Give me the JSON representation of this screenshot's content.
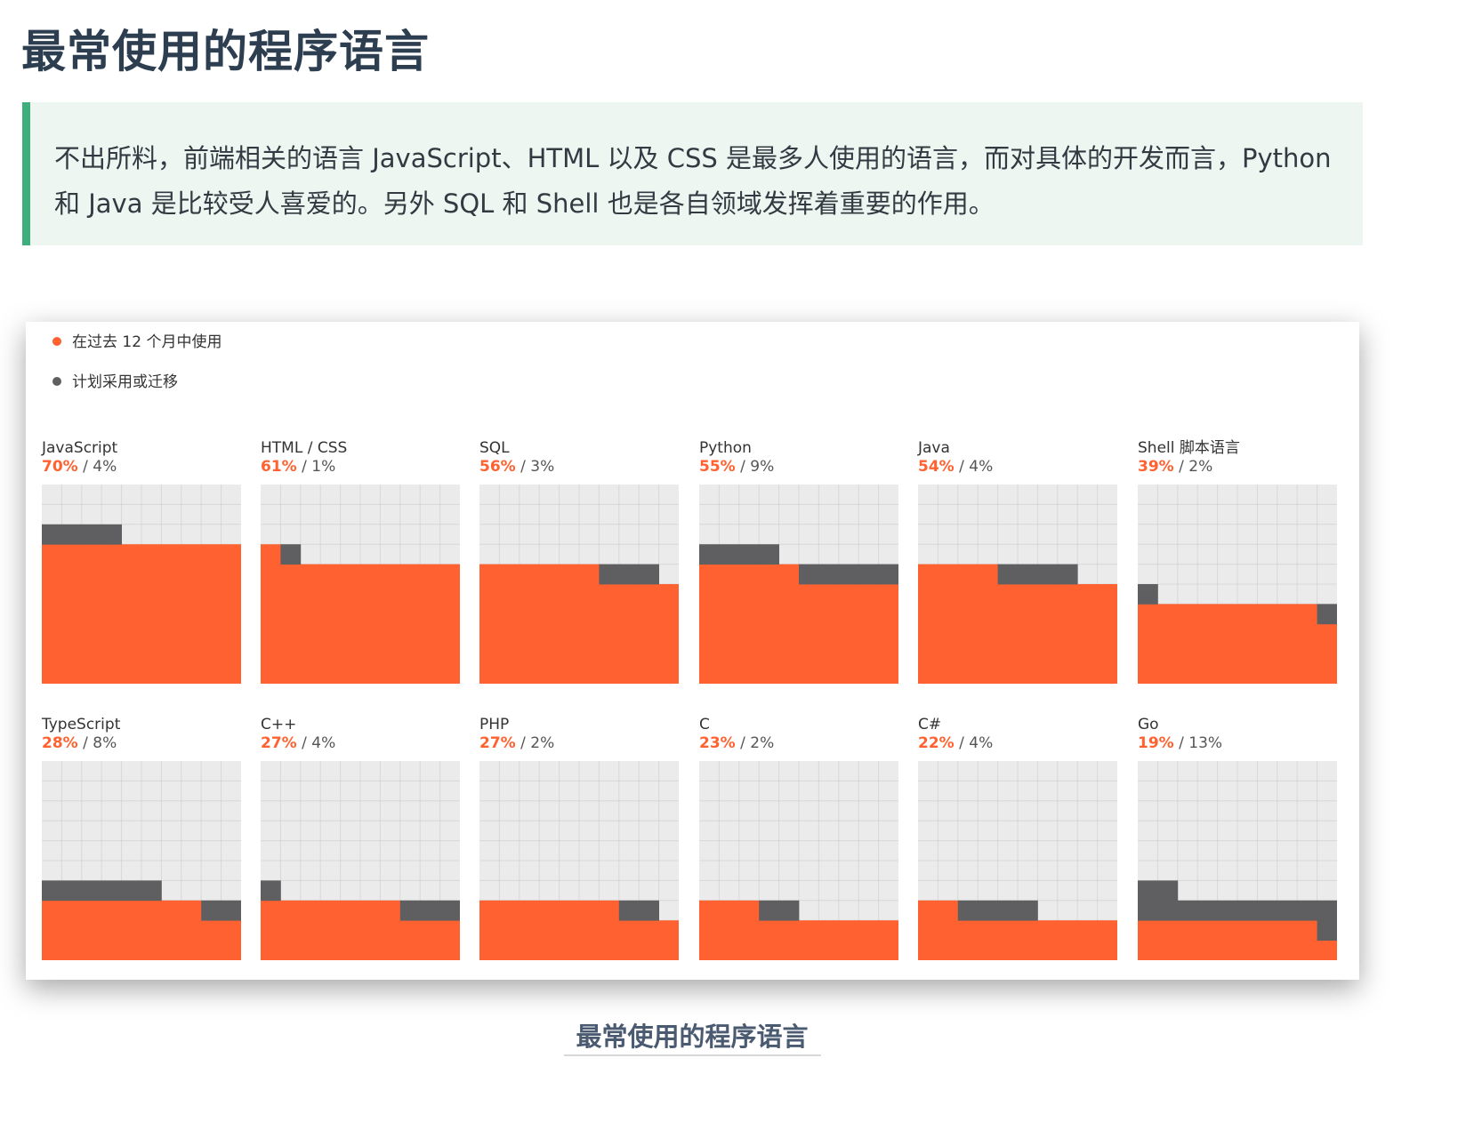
{
  "page": {
    "title": "最常使用的程序语言",
    "intro": "不出所料，前端相关的语言 JavaScript、HTML 以及 CSS 是最多人使用的语言，而对具体的开发而言，Python 和 Java 是比较受人喜爱的。另外 SQL 和 Shell 也是各自领域发挥着重要的作用。",
    "caption": "最常使用的程序语言"
  },
  "colors": {
    "used": "#ff6230",
    "planned": "#5f5f61",
    "empty": "#ebebeb",
    "accent": "#3eaf7c"
  },
  "chart_data": {
    "type": "waffle",
    "grid": [
      10,
      10
    ],
    "legend": [
      {
        "label": "在过去 12 个月中使用",
        "color": "#ff6230"
      },
      {
        "label": "计划采用或迁移",
        "color": "#5f5f61"
      }
    ],
    "legend_position": "top-left",
    "categories": [
      "JavaScript",
      "HTML / CSS",
      "SQL",
      "Python",
      "Java",
      "Shell 脚本语言",
      "TypeScript",
      "C++",
      "PHP",
      "C",
      "C#",
      "Go"
    ],
    "series": [
      {
        "name": "在过去 12 个月中使用",
        "values": [
          70,
          61,
          56,
          55,
          54,
          39,
          28,
          27,
          27,
          23,
          22,
          19
        ]
      },
      {
        "name": "计划采用或迁移",
        "values": [
          4,
          1,
          3,
          9,
          4,
          2,
          8,
          4,
          2,
          2,
          4,
          13
        ]
      }
    ],
    "items": [
      {
        "name": "JavaScript",
        "used": 70,
        "planned": 4,
        "used_label": "70%",
        "planned_label": "4%"
      },
      {
        "name": "HTML / CSS",
        "used": 61,
        "planned": 1,
        "used_label": "61%",
        "planned_label": "1%"
      },
      {
        "name": "SQL",
        "used": 56,
        "planned": 3,
        "used_label": "56%",
        "planned_label": "3%"
      },
      {
        "name": "Python",
        "used": 55,
        "planned": 9,
        "used_label": "55%",
        "planned_label": "9%"
      },
      {
        "name": "Java",
        "used": 54,
        "planned": 4,
        "used_label": "54%",
        "planned_label": "4%"
      },
      {
        "name": "Shell 脚本语言",
        "used": 39,
        "planned": 2,
        "used_label": "39%",
        "planned_label": "2%"
      },
      {
        "name": "TypeScript",
        "used": 28,
        "planned": 8,
        "used_label": "28%",
        "planned_label": "8%"
      },
      {
        "name": "C++",
        "used": 27,
        "planned": 4,
        "used_label": "27%",
        "planned_label": "4%"
      },
      {
        "name": "PHP",
        "used": 27,
        "planned": 2,
        "used_label": "27%",
        "planned_label": "2%"
      },
      {
        "name": "C",
        "used": 23,
        "planned": 2,
        "used_label": "23%",
        "planned_label": "2%"
      },
      {
        "name": "C#",
        "used": 22,
        "planned": 4,
        "used_label": "22%",
        "planned_label": "4%"
      },
      {
        "name": "Go",
        "used": 19,
        "planned": 13,
        "used_label": "19%",
        "planned_label": "13%"
      }
    ]
  }
}
